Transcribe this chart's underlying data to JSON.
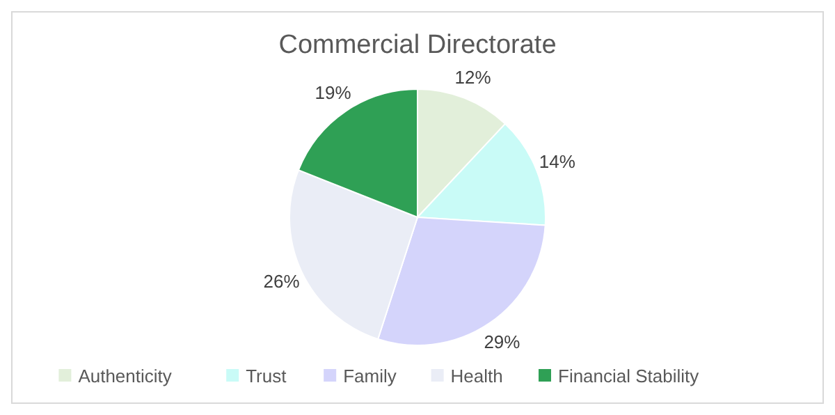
{
  "chart_data": {
    "type": "pie",
    "title": "Commercial Directorate",
    "categories": [
      "Authenticity",
      "Trust",
      "Family",
      "Health",
      "Financial Stability"
    ],
    "values": [
      12,
      14,
      29,
      26,
      19
    ],
    "colors": [
      "#e2efda",
      "#c9fbf7",
      "#d4d4fb",
      "#eaedf6",
      "#2fa055"
    ],
    "value_labels": [
      "12%",
      "14%",
      "29%",
      "26%",
      "19%"
    ],
    "legend": "bottom"
  }
}
